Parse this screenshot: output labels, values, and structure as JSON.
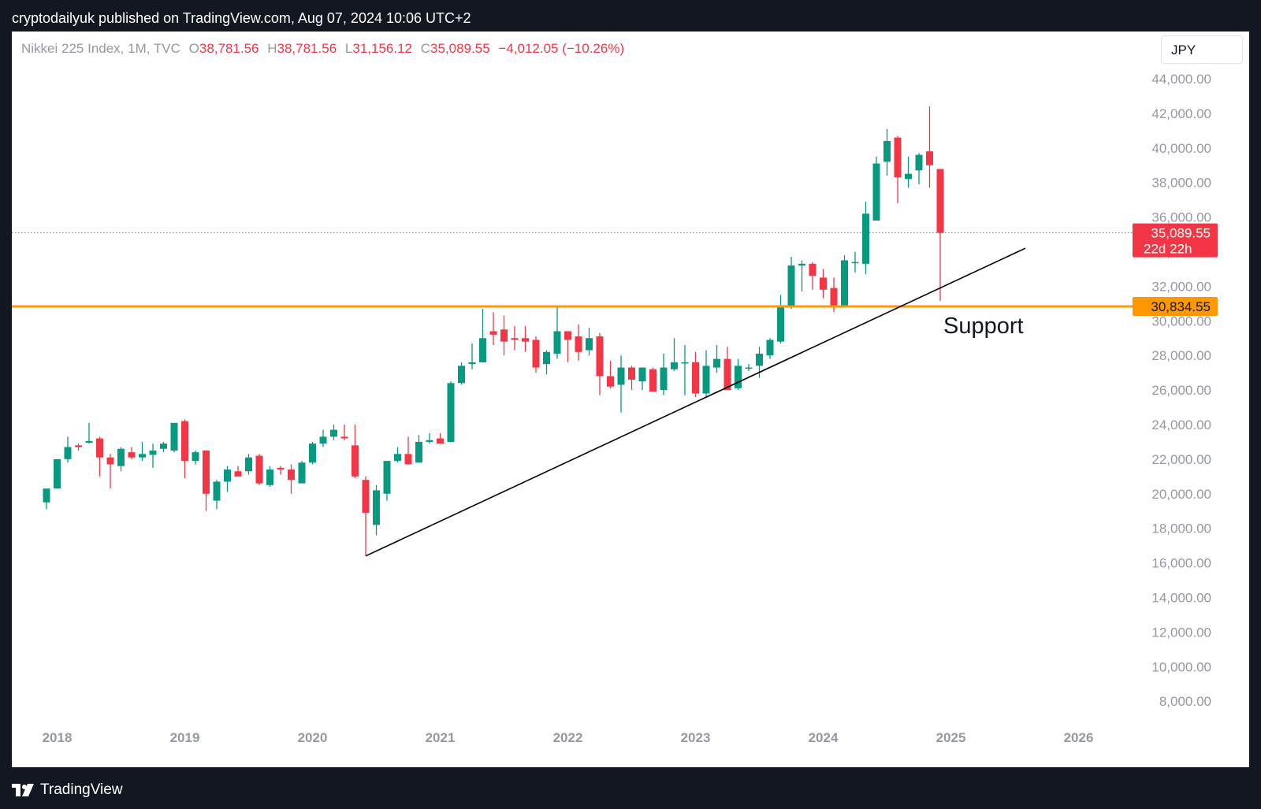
{
  "header": {
    "publisher_line": "cryptodailyuk published on TradingView.com, Aug 07, 2024 10:06 UTC+2"
  },
  "legend": {
    "symbol": "Nikkei 225 Index, 1M, TVC",
    "o_label": "O",
    "o_value": "38,781.56",
    "h_label": "H",
    "h_value": "38,781.56",
    "l_label": "L",
    "l_value": "31,156.12",
    "c_label": "C",
    "c_value": "35,089.55",
    "change": "−4,012.05 (−10.26%)"
  },
  "currency": "JPY",
  "footer": {
    "brand": "TradingView"
  },
  "colors": {
    "up": "#089981",
    "down": "#f23645",
    "support": "#ff9800",
    "price_line": "#f23645",
    "axis_text": "#9598a1",
    "trendline": "#000000"
  },
  "chart_data": {
    "type": "candlestick",
    "symbol": "Nikkei 225 Index",
    "interval": "1M",
    "ylim": [
      7000,
      45000
    ],
    "y_ticks": [
      8000,
      10000,
      12000,
      14000,
      16000,
      18000,
      20000,
      22000,
      24000,
      26000,
      28000,
      30000,
      32000,
      34000,
      36000,
      38000,
      40000,
      42000,
      44000
    ],
    "y_tick_labels": [
      "8,000.00",
      "10,000.00",
      "12,000.00",
      "14,000.00",
      "16,000.00",
      "18,000.00",
      "20,000.00",
      "22,000.00",
      "24,000.00",
      "26,000.00",
      "28,000.00",
      "30,000.00",
      "32,000.00",
      "34,000.00",
      "36,000.00",
      "38,000.00",
      "40,000.00",
      "42,000.00",
      "44,000.00"
    ],
    "x_ticks": [
      "2018-01",
      "2019-01",
      "2020-01",
      "2021-01",
      "2022-01",
      "2023-01",
      "2024-01",
      "2025-01",
      "2026-01"
    ],
    "x_tick_labels": [
      "2018",
      "2019",
      "2020",
      "2021",
      "2022",
      "2023",
      "2024",
      "2025",
      "2026"
    ],
    "candles": [
      {
        "month": "2017-12",
        "o": 19500,
        "h": 20300,
        "l": 19100,
        "c": 20300
      },
      {
        "month": "2018-01",
        "o": 20300,
        "h": 22000,
        "l": 20300,
        "c": 22000
      },
      {
        "month": "2018-02",
        "o": 22000,
        "h": 23300,
        "l": 21800,
        "c": 22700
      },
      {
        "month": "2018-03",
        "o": 22800,
        "h": 22900,
        "l": 22500,
        "c": 22700
      },
      {
        "month": "2018-04",
        "o": 22950,
        "h": 24100,
        "l": 22900,
        "c": 23050
      },
      {
        "month": "2018-05",
        "o": 23200,
        "h": 23300,
        "l": 21000,
        "c": 22100
      },
      {
        "month": "2018-06",
        "o": 22100,
        "h": 22300,
        "l": 20300,
        "c": 21700
      },
      {
        "month": "2018-07",
        "o": 21600,
        "h": 22700,
        "l": 21300,
        "c": 22600
      },
      {
        "month": "2018-08",
        "o": 22400,
        "h": 22700,
        "l": 22000,
        "c": 22100
      },
      {
        "month": "2018-09",
        "o": 22100,
        "h": 23000,
        "l": 21900,
        "c": 22300
      },
      {
        "month": "2018-10",
        "o": 22250,
        "h": 22900,
        "l": 21500,
        "c": 22500
      },
      {
        "month": "2018-11",
        "o": 22600,
        "h": 23000,
        "l": 22400,
        "c": 22900
      },
      {
        "month": "2018-12",
        "o": 22500,
        "h": 24000,
        "l": 22400,
        "c": 24100
      },
      {
        "month": "2019-01",
        "o": 24200,
        "h": 24300,
        "l": 20900,
        "c": 21900
      },
      {
        "month": "2019-02",
        "o": 21900,
        "h": 22500,
        "l": 21700,
        "c": 22400
      },
      {
        "month": "2019-03",
        "o": 22500,
        "h": 22500,
        "l": 19000,
        "c": 20000
      },
      {
        "month": "2019-04",
        "o": 19600,
        "h": 20800,
        "l": 19100,
        "c": 20700
      },
      {
        "month": "2019-05",
        "o": 20700,
        "h": 21600,
        "l": 20100,
        "c": 21400
      },
      {
        "month": "2019-06",
        "o": 21300,
        "h": 21600,
        "l": 21000,
        "c": 21000
      },
      {
        "month": "2019-07",
        "o": 21300,
        "h": 22300,
        "l": 21100,
        "c": 22100
      },
      {
        "month": "2019-08",
        "o": 22200,
        "h": 22300,
        "l": 20500,
        "c": 20600
      },
      {
        "month": "2019-09",
        "o": 20500,
        "h": 21600,
        "l": 20400,
        "c": 21400
      },
      {
        "month": "2019-10",
        "o": 21500,
        "h": 21600,
        "l": 21100,
        "c": 21400
      },
      {
        "month": "2019-11",
        "o": 21400,
        "h": 21700,
        "l": 20000,
        "c": 20800
      },
      {
        "month": "2019-12",
        "o": 20600,
        "h": 21900,
        "l": 20600,
        "c": 21800
      },
      {
        "month": "2020-01",
        "o": 21800,
        "h": 23000,
        "l": 21700,
        "c": 22900
      },
      {
        "month": "2020-02",
        "o": 22900,
        "h": 23700,
        "l": 22700,
        "c": 23300
      },
      {
        "month": "2020-03",
        "o": 23300,
        "h": 24000,
        "l": 23100,
        "c": 23700
      },
      {
        "month": "2020-04",
        "o": 23300,
        "h": 24000,
        "l": 23100,
        "c": 23200
      },
      {
        "month": "2020-05",
        "o": 22800,
        "h": 24000,
        "l": 20900,
        "c": 21000
      },
      {
        "month": "2020-06",
        "o": 20800,
        "h": 21000,
        "l": 16400,
        "c": 18900
      },
      {
        "month": "2020-07",
        "o": 18200,
        "h": 20500,
        "l": 17600,
        "c": 20200
      },
      {
        "month": "2020-08",
        "o": 20000,
        "h": 21900,
        "l": 19600,
        "c": 21900
      },
      {
        "month": "2020-09",
        "o": 21900,
        "h": 22700,
        "l": 21800,
        "c": 22300
      },
      {
        "month": "2020-10",
        "o": 22300,
        "h": 23300,
        "l": 21700,
        "c": 21700
      },
      {
        "month": "2020-11",
        "o": 21800,
        "h": 23400,
        "l": 21800,
        "c": 23000
      },
      {
        "month": "2020-12",
        "o": 23000,
        "h": 23500,
        "l": 22900,
        "c": 23100
      },
      {
        "month": "2021-01",
        "o": 23200,
        "h": 23500,
        "l": 23000,
        "c": 22900
      },
      {
        "month": "2021-02",
        "o": 23000,
        "h": 26500,
        "l": 23000,
        "c": 26400
      },
      {
        "month": "2021-03",
        "o": 26400,
        "h": 27600,
        "l": 26300,
        "c": 27400
      },
      {
        "month": "2021-04",
        "o": 27500,
        "h": 28700,
        "l": 27200,
        "c": 27600
      },
      {
        "month": "2021-05",
        "o": 27600,
        "h": 30700,
        "l": 27600,
        "c": 29000
      },
      {
        "month": "2021-06",
        "o": 29400,
        "h": 30500,
        "l": 28600,
        "c": 29200
      },
      {
        "month": "2021-07",
        "o": 29500,
        "h": 30300,
        "l": 28000,
        "c": 28800
      },
      {
        "month": "2021-08",
        "o": 29000,
        "h": 29700,
        "l": 28300,
        "c": 28900
      },
      {
        "month": "2021-09",
        "o": 29000,
        "h": 29700,
        "l": 28200,
        "c": 28800
      },
      {
        "month": "2021-10",
        "o": 28900,
        "h": 29100,
        "l": 27000,
        "c": 27300
      },
      {
        "month": "2021-11",
        "o": 27500,
        "h": 28300,
        "l": 26900,
        "c": 28200
      },
      {
        "month": "2021-12",
        "o": 28100,
        "h": 30800,
        "l": 27800,
        "c": 29400
      },
      {
        "month": "2022-01",
        "o": 29400,
        "h": 29400,
        "l": 27600,
        "c": 28900
      },
      {
        "month": "2022-02",
        "o": 29100,
        "h": 29800,
        "l": 27700,
        "c": 28200
      },
      {
        "month": "2022-03",
        "o": 28300,
        "h": 29600,
        "l": 28000,
        "c": 29000
      },
      {
        "month": "2022-04",
        "o": 29100,
        "h": 29300,
        "l": 25700,
        "c": 26800
      },
      {
        "month": "2022-05",
        "o": 26800,
        "h": 27700,
        "l": 26100,
        "c": 26200
      },
      {
        "month": "2022-06",
        "o": 26300,
        "h": 28000,
        "l": 24700,
        "c": 27300
      },
      {
        "month": "2022-07",
        "o": 27300,
        "h": 27400,
        "l": 26000,
        "c": 26600
      },
      {
        "month": "2022-08",
        "o": 26500,
        "h": 27300,
        "l": 26000,
        "c": 27300
      },
      {
        "month": "2022-09",
        "o": 27200,
        "h": 27300,
        "l": 25900,
        "c": 25900
      },
      {
        "month": "2022-10",
        "o": 26000,
        "h": 28100,
        "l": 25700,
        "c": 27300
      },
      {
        "month": "2022-11",
        "o": 27200,
        "h": 29000,
        "l": 27100,
        "c": 27600
      },
      {
        "month": "2022-12",
        "o": 27600,
        "h": 28600,
        "l": 25700,
        "c": 27600
      },
      {
        "month": "2023-01",
        "o": 27600,
        "h": 28200,
        "l": 25600,
        "c": 25800
      },
      {
        "month": "2023-02",
        "o": 25800,
        "h": 28300,
        "l": 25600,
        "c": 27400
      },
      {
        "month": "2023-03",
        "o": 27300,
        "h": 28600,
        "l": 27000,
        "c": 27800
      },
      {
        "month": "2023-04",
        "o": 27800,
        "h": 28500,
        "l": 26000,
        "c": 26000
      },
      {
        "month": "2023-05",
        "o": 26100,
        "h": 27800,
        "l": 26000,
        "c": 27400
      },
      {
        "month": "2023-06",
        "o": 27300,
        "h": 27500,
        "l": 27100,
        "c": 27300
      },
      {
        "month": "2023-07",
        "o": 27400,
        "h": 28500,
        "l": 26700,
        "c": 28100
      },
      {
        "month": "2023-08",
        "o": 28000,
        "h": 29000,
        "l": 27800,
        "c": 28900
      },
      {
        "month": "2023-09",
        "o": 28800,
        "h": 31500,
        "l": 28700,
        "c": 30900
      },
      {
        "month": "2023-10",
        "o": 30900,
        "h": 33700,
        "l": 30700,
        "c": 33200
      },
      {
        "month": "2023-11",
        "o": 33200,
        "h": 33500,
        "l": 31700,
        "c": 33300
      },
      {
        "month": "2023-12",
        "o": 33300,
        "h": 33400,
        "l": 31800,
        "c": 32600
      },
      {
        "month": "2024-01",
        "o": 32500,
        "h": 33000,
        "l": 31300,
        "c": 31800
      },
      {
        "month": "2024-02",
        "o": 31900,
        "h": 32500,
        "l": 30500,
        "c": 30900
      },
      {
        "month": "2024-03",
        "o": 30800,
        "h": 33800,
        "l": 30800,
        "c": 33500
      },
      {
        "month": "2024-04",
        "o": 33400,
        "h": 34000,
        "l": 32800,
        "c": 33400
      },
      {
        "month": "2024-05",
        "o": 33300,
        "h": 36900,
        "l": 32700,
        "c": 36200
      },
      {
        "month": "2024-06",
        "o": 35800,
        "h": 39500,
        "l": 35900,
        "c": 39100
      },
      {
        "month": "2024-07",
        "o": 39200,
        "h": 41100,
        "l": 38400,
        "c": 40400
      },
      {
        "month": "2024-08",
        "o": 40600,
        "h": 40700,
        "l": 36800,
        "c": 38300
      },
      {
        "month": "2024-09",
        "o": 38200,
        "h": 39500,
        "l": 37700,
        "c": 38500
      },
      {
        "month": "2024-10",
        "o": 38700,
        "h": 39700,
        "l": 37900,
        "c": 39600
      },
      {
        "month": "2024-11",
        "o": 39800,
        "h": 42400,
        "l": 37700,
        "c": 39000
      },
      {
        "month": "2024-12",
        "o": 38781.56,
        "h": 38781.56,
        "l": 31156.12,
        "c": 35089.55
      }
    ],
    "last_price": {
      "value": 35089.55,
      "label": "35,089.55",
      "countdown": "22d 22h"
    },
    "support_line": {
      "value": 30834.55,
      "label": "30,834.55"
    },
    "trendline": {
      "start": {
        "month": "2020-06",
        "y": 16400
      },
      "end": {
        "month": "2025-08",
        "y": 34200
      }
    },
    "annotation": "Support"
  }
}
